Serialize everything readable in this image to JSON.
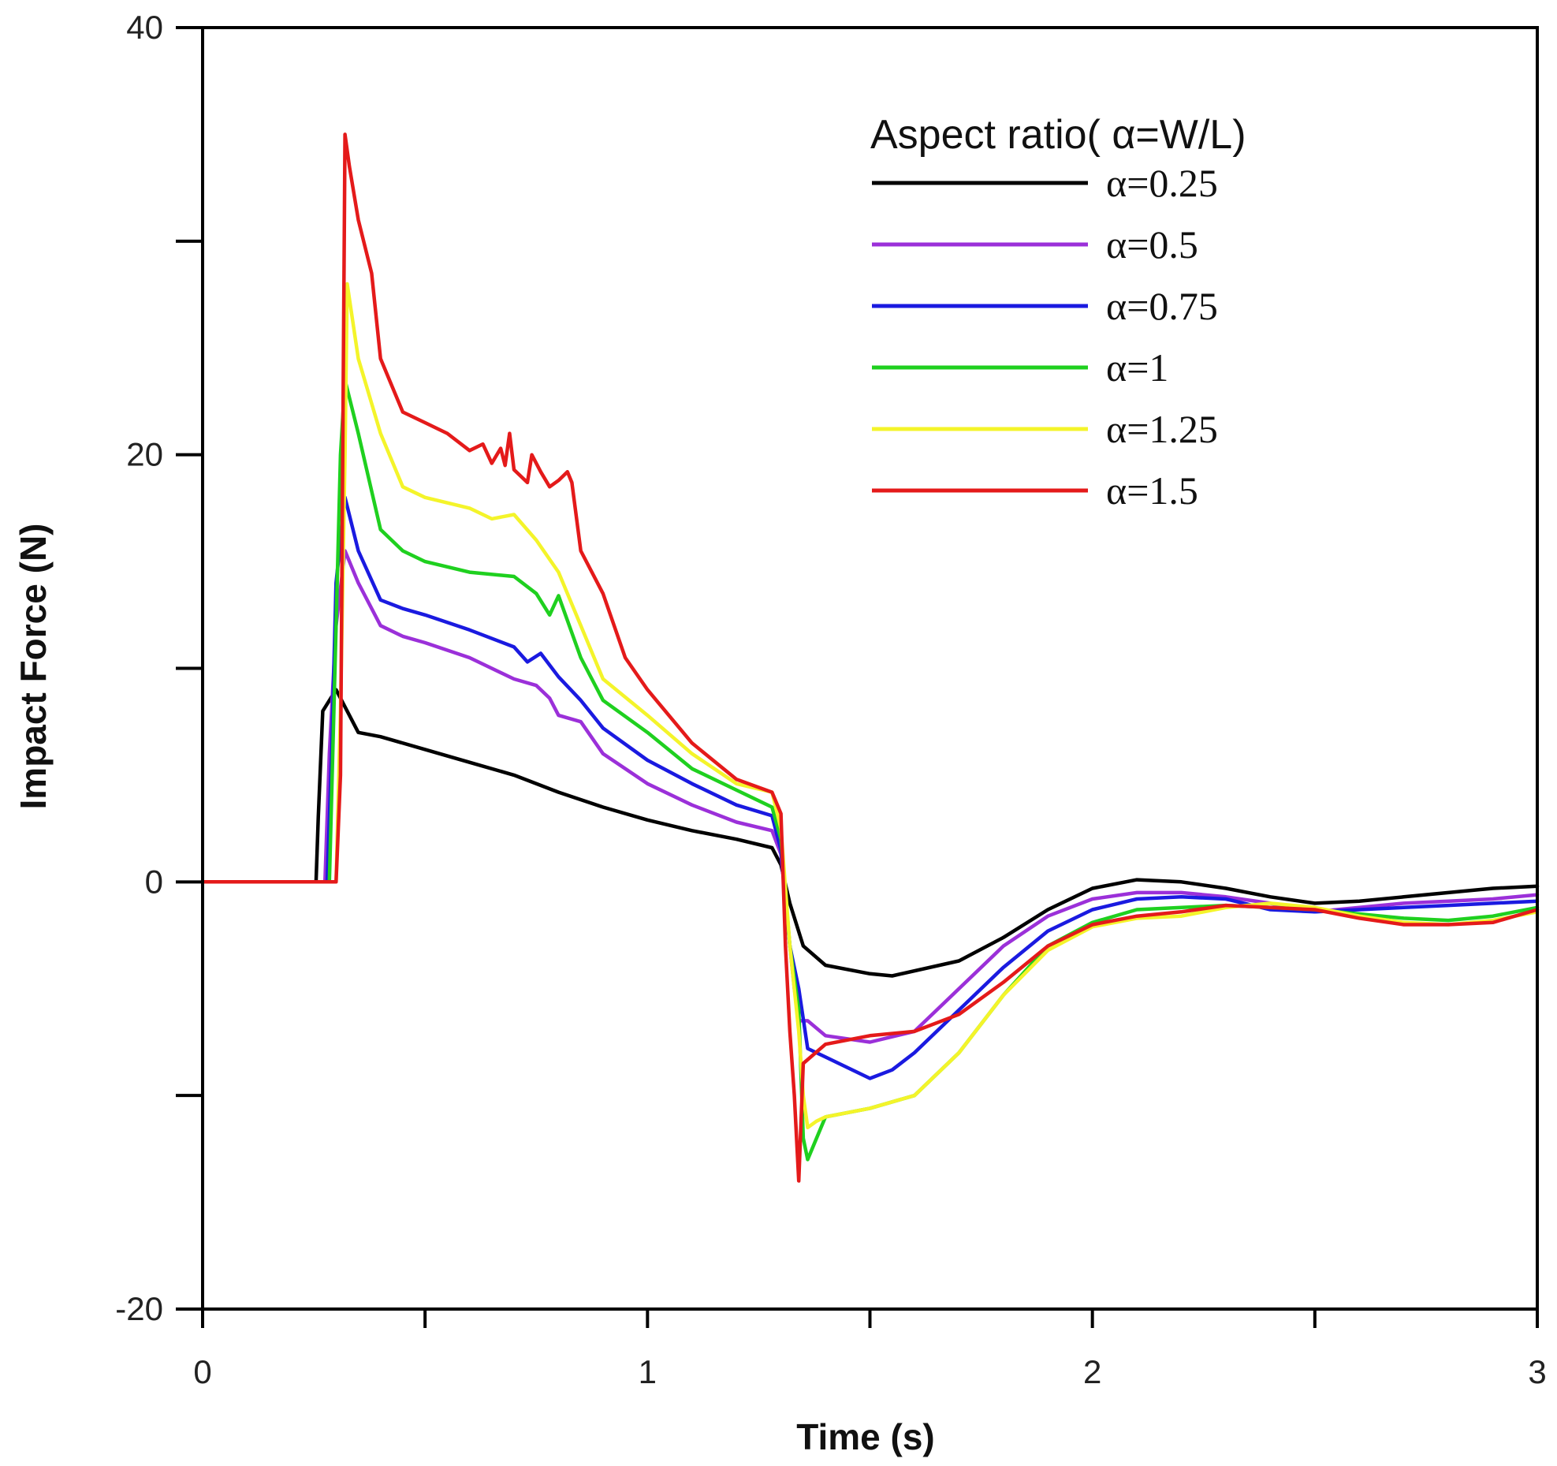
{
  "chart_data": {
    "type": "line",
    "title": "",
    "xlabel": "Time (s)",
    "ylabel": "Impact Force (N)",
    "xlim": [
      0,
      3
    ],
    "ylim": [
      -20,
      40
    ],
    "x_ticks": [
      0,
      1,
      2,
      3
    ],
    "x_minor_ticks": [
      0.5,
      1.5,
      2.5
    ],
    "y_ticks": [
      -20,
      0,
      20,
      40
    ],
    "y_minor_ticks": [
      -10,
      10,
      30
    ],
    "grid": false,
    "legend": {
      "title": "Aspect ratio( α=W/L)",
      "position": "top-right"
    },
    "series": [
      {
        "name": "α=0.25",
        "color": "#000000",
        "points": [
          [
            0,
            0
          ],
          [
            0.255,
            0
          ],
          [
            0.26,
            3
          ],
          [
            0.27,
            8
          ],
          [
            0.3,
            9
          ],
          [
            0.35,
            7
          ],
          [
            0.4,
            6.8
          ],
          [
            0.5,
            6.2
          ],
          [
            0.6,
            5.6
          ],
          [
            0.7,
            5
          ],
          [
            0.8,
            4.2
          ],
          [
            0.9,
            3.5
          ],
          [
            1.0,
            2.9
          ],
          [
            1.1,
            2.4
          ],
          [
            1.2,
            2
          ],
          [
            1.28,
            1.6
          ],
          [
            1.3,
            0.8
          ],
          [
            1.32,
            -1
          ],
          [
            1.35,
            -3
          ],
          [
            1.4,
            -3.9
          ],
          [
            1.5,
            -4.3
          ],
          [
            1.55,
            -4.4
          ],
          [
            1.7,
            -3.7
          ],
          [
            1.8,
            -2.6
          ],
          [
            1.9,
            -1.3
          ],
          [
            2.0,
            -0.3
          ],
          [
            2.1,
            0.1
          ],
          [
            2.2,
            0
          ],
          [
            2.3,
            -0.3
          ],
          [
            2.4,
            -0.7
          ],
          [
            2.5,
            -1
          ],
          [
            2.6,
            -0.9
          ],
          [
            2.7,
            -0.7
          ],
          [
            2.8,
            -0.5
          ],
          [
            2.9,
            -0.3
          ],
          [
            3.0,
            -0.2
          ]
        ]
      },
      {
        "name": "α=0.5",
        "color": "#9b30d9",
        "points": [
          [
            0,
            0
          ],
          [
            0.275,
            0
          ],
          [
            0.285,
            6
          ],
          [
            0.3,
            12
          ],
          [
            0.32,
            15.5
          ],
          [
            0.35,
            14
          ],
          [
            0.4,
            12
          ],
          [
            0.45,
            11.5
          ],
          [
            0.5,
            11.2
          ],
          [
            0.6,
            10.5
          ],
          [
            0.7,
            9.5
          ],
          [
            0.75,
            9.2
          ],
          [
            0.78,
            8.6
          ],
          [
            0.8,
            7.8
          ],
          [
            0.85,
            7.5
          ],
          [
            0.9,
            6
          ],
          [
            1.0,
            4.6
          ],
          [
            1.1,
            3.6
          ],
          [
            1.2,
            2.8
          ],
          [
            1.28,
            2.4
          ],
          [
            1.3,
            1.3
          ],
          [
            1.32,
            -3
          ],
          [
            1.33,
            -5
          ],
          [
            1.34,
            -6.5
          ],
          [
            1.36,
            -6.5
          ],
          [
            1.4,
            -7.2
          ],
          [
            1.5,
            -7.5
          ],
          [
            1.6,
            -7
          ],
          [
            1.7,
            -5
          ],
          [
            1.8,
            -3
          ],
          [
            1.9,
            -1.6
          ],
          [
            2.0,
            -0.8
          ],
          [
            2.1,
            -0.5
          ],
          [
            2.2,
            -0.5
          ],
          [
            2.3,
            -0.7
          ],
          [
            2.4,
            -1
          ],
          [
            2.5,
            -1.4
          ],
          [
            2.6,
            -1.2
          ],
          [
            2.7,
            -1
          ],
          [
            2.8,
            -0.9
          ],
          [
            2.9,
            -0.8
          ],
          [
            3.0,
            -0.6
          ]
        ]
      },
      {
        "name": "α=0.75",
        "color": "#1a1ae0",
        "points": [
          [
            0,
            0
          ],
          [
            0.28,
            0
          ],
          [
            0.29,
            6
          ],
          [
            0.3,
            14
          ],
          [
            0.32,
            18
          ],
          [
            0.35,
            15.5
          ],
          [
            0.4,
            13.2
          ],
          [
            0.45,
            12.8
          ],
          [
            0.5,
            12.5
          ],
          [
            0.6,
            11.8
          ],
          [
            0.7,
            11
          ],
          [
            0.73,
            10.3
          ],
          [
            0.76,
            10.7
          ],
          [
            0.8,
            9.6
          ],
          [
            0.85,
            8.5
          ],
          [
            0.9,
            7.2
          ],
          [
            1.0,
            5.7
          ],
          [
            1.1,
            4.6
          ],
          [
            1.2,
            3.6
          ],
          [
            1.28,
            3.1
          ],
          [
            1.3,
            1.5
          ],
          [
            1.32,
            -3
          ],
          [
            1.34,
            -5
          ],
          [
            1.36,
            -7.8
          ],
          [
            1.4,
            -8.2
          ],
          [
            1.5,
            -9.2
          ],
          [
            1.55,
            -8.8
          ],
          [
            1.6,
            -8
          ],
          [
            1.7,
            -6
          ],
          [
            1.8,
            -4
          ],
          [
            1.9,
            -2.3
          ],
          [
            2.0,
            -1.3
          ],
          [
            2.1,
            -0.8
          ],
          [
            2.2,
            -0.7
          ],
          [
            2.3,
            -0.8
          ],
          [
            2.4,
            -1.3
          ],
          [
            2.5,
            -1.4
          ],
          [
            2.6,
            -1.3
          ],
          [
            2.7,
            -1.2
          ],
          [
            2.8,
            -1.1
          ],
          [
            2.9,
            -1
          ],
          [
            3.0,
            -0.9
          ]
        ]
      },
      {
        "name": "α=1",
        "color": "#1fd01f",
        "points": [
          [
            0,
            0
          ],
          [
            0.285,
            0
          ],
          [
            0.295,
            8
          ],
          [
            0.31,
            20
          ],
          [
            0.32,
            23.5
          ],
          [
            0.35,
            21
          ],
          [
            0.4,
            16.5
          ],
          [
            0.45,
            15.5
          ],
          [
            0.5,
            15
          ],
          [
            0.6,
            14.5
          ],
          [
            0.7,
            14.3
          ],
          [
            0.75,
            13.5
          ],
          [
            0.78,
            12.5
          ],
          [
            0.8,
            13.4
          ],
          [
            0.85,
            10.5
          ],
          [
            0.9,
            8.5
          ],
          [
            1.0,
            7
          ],
          [
            1.1,
            5.3
          ],
          [
            1.2,
            4.3
          ],
          [
            1.28,
            3.5
          ],
          [
            1.3,
            2
          ],
          [
            1.32,
            -3
          ],
          [
            1.34,
            -6
          ],
          [
            1.35,
            -12
          ],
          [
            1.36,
            -13
          ],
          [
            1.38,
            -12
          ],
          [
            1.4,
            -11
          ],
          [
            1.5,
            -10.6
          ],
          [
            1.6,
            -10
          ],
          [
            1.7,
            -8
          ],
          [
            1.8,
            -5.3
          ],
          [
            1.9,
            -3
          ],
          [
            2.0,
            -1.9
          ],
          [
            2.1,
            -1.3
          ],
          [
            2.2,
            -1.2
          ],
          [
            2.3,
            -1.1
          ],
          [
            2.4,
            -1.2
          ],
          [
            2.5,
            -1.3
          ],
          [
            2.6,
            -1.5
          ],
          [
            2.7,
            -1.7
          ],
          [
            2.8,
            -1.8
          ],
          [
            2.9,
            -1.6
          ],
          [
            3.0,
            -1.2
          ]
        ]
      },
      {
        "name": "α=1.25",
        "color": "#f4f42a",
        "points": [
          [
            0,
            0
          ],
          [
            0.3,
            0
          ],
          [
            0.31,
            8
          ],
          [
            0.32,
            20
          ],
          [
            0.325,
            28
          ],
          [
            0.35,
            24.5
          ],
          [
            0.4,
            21
          ],
          [
            0.45,
            18.5
          ],
          [
            0.5,
            18
          ],
          [
            0.6,
            17.5
          ],
          [
            0.65,
            17
          ],
          [
            0.7,
            17.2
          ],
          [
            0.75,
            16
          ],
          [
            0.8,
            14.5
          ],
          [
            0.85,
            12
          ],
          [
            0.9,
            9.5
          ],
          [
            1.0,
            7.8
          ],
          [
            1.1,
            6
          ],
          [
            1.2,
            4.6
          ],
          [
            1.28,
            4.2
          ],
          [
            1.3,
            2.5
          ],
          [
            1.32,
            -3
          ],
          [
            1.34,
            -7
          ],
          [
            1.35,
            -10
          ],
          [
            1.36,
            -11.5
          ],
          [
            1.38,
            -11.2
          ],
          [
            1.4,
            -11
          ],
          [
            1.5,
            -10.6
          ],
          [
            1.6,
            -10
          ],
          [
            1.7,
            -8
          ],
          [
            1.8,
            -5.3
          ],
          [
            1.9,
            -3.2
          ],
          [
            2.0,
            -2.1
          ],
          [
            2.1,
            -1.7
          ],
          [
            2.2,
            -1.6
          ],
          [
            2.3,
            -1.2
          ],
          [
            2.4,
            -1
          ],
          [
            2.5,
            -1.2
          ],
          [
            2.6,
            -1.6
          ],
          [
            2.7,
            -1.9
          ],
          [
            2.8,
            -2
          ],
          [
            2.9,
            -1.8
          ],
          [
            3.0,
            -1.4
          ]
        ]
      },
      {
        "name": "α=1.5",
        "color": "#e41a1a",
        "points": [
          [
            0,
            0
          ],
          [
            0.3,
            0
          ],
          [
            0.31,
            5
          ],
          [
            0.32,
            35
          ],
          [
            0.33,
            33.5
          ],
          [
            0.35,
            31
          ],
          [
            0.38,
            28.5
          ],
          [
            0.4,
            24.5
          ],
          [
            0.45,
            22
          ],
          [
            0.5,
            21.5
          ],
          [
            0.55,
            21
          ],
          [
            0.6,
            20.2
          ],
          [
            0.63,
            20.5
          ],
          [
            0.65,
            19.6
          ],
          [
            0.67,
            20.3
          ],
          [
            0.68,
            19.5
          ],
          [
            0.69,
            21
          ],
          [
            0.7,
            19.3
          ],
          [
            0.73,
            18.7
          ],
          [
            0.74,
            20
          ],
          [
            0.76,
            19.2
          ],
          [
            0.78,
            18.5
          ],
          [
            0.8,
            18.8
          ],
          [
            0.82,
            19.2
          ],
          [
            0.83,
            18.7
          ],
          [
            0.85,
            15.5
          ],
          [
            0.9,
            13.5
          ],
          [
            0.95,
            10.5
          ],
          [
            1.0,
            9
          ],
          [
            1.1,
            6.5
          ],
          [
            1.2,
            4.8
          ],
          [
            1.28,
            4.2
          ],
          [
            1.3,
            3.2
          ],
          [
            1.31,
            -3
          ],
          [
            1.32,
            -7
          ],
          [
            1.33,
            -10
          ],
          [
            1.34,
            -14
          ],
          [
            1.35,
            -8.5
          ],
          [
            1.4,
            -7.6
          ],
          [
            1.5,
            -7.2
          ],
          [
            1.6,
            -7
          ],
          [
            1.7,
            -6.2
          ],
          [
            1.8,
            -4.7
          ],
          [
            1.9,
            -3
          ],
          [
            2.0,
            -2
          ],
          [
            2.1,
            -1.6
          ],
          [
            2.2,
            -1.4
          ],
          [
            2.3,
            -1.1
          ],
          [
            2.4,
            -1.2
          ],
          [
            2.5,
            -1.3
          ],
          [
            2.6,
            -1.7
          ],
          [
            2.7,
            -2
          ],
          [
            2.8,
            -2
          ],
          [
            2.9,
            -1.9
          ],
          [
            3.0,
            -1.3
          ]
        ]
      }
    ]
  }
}
